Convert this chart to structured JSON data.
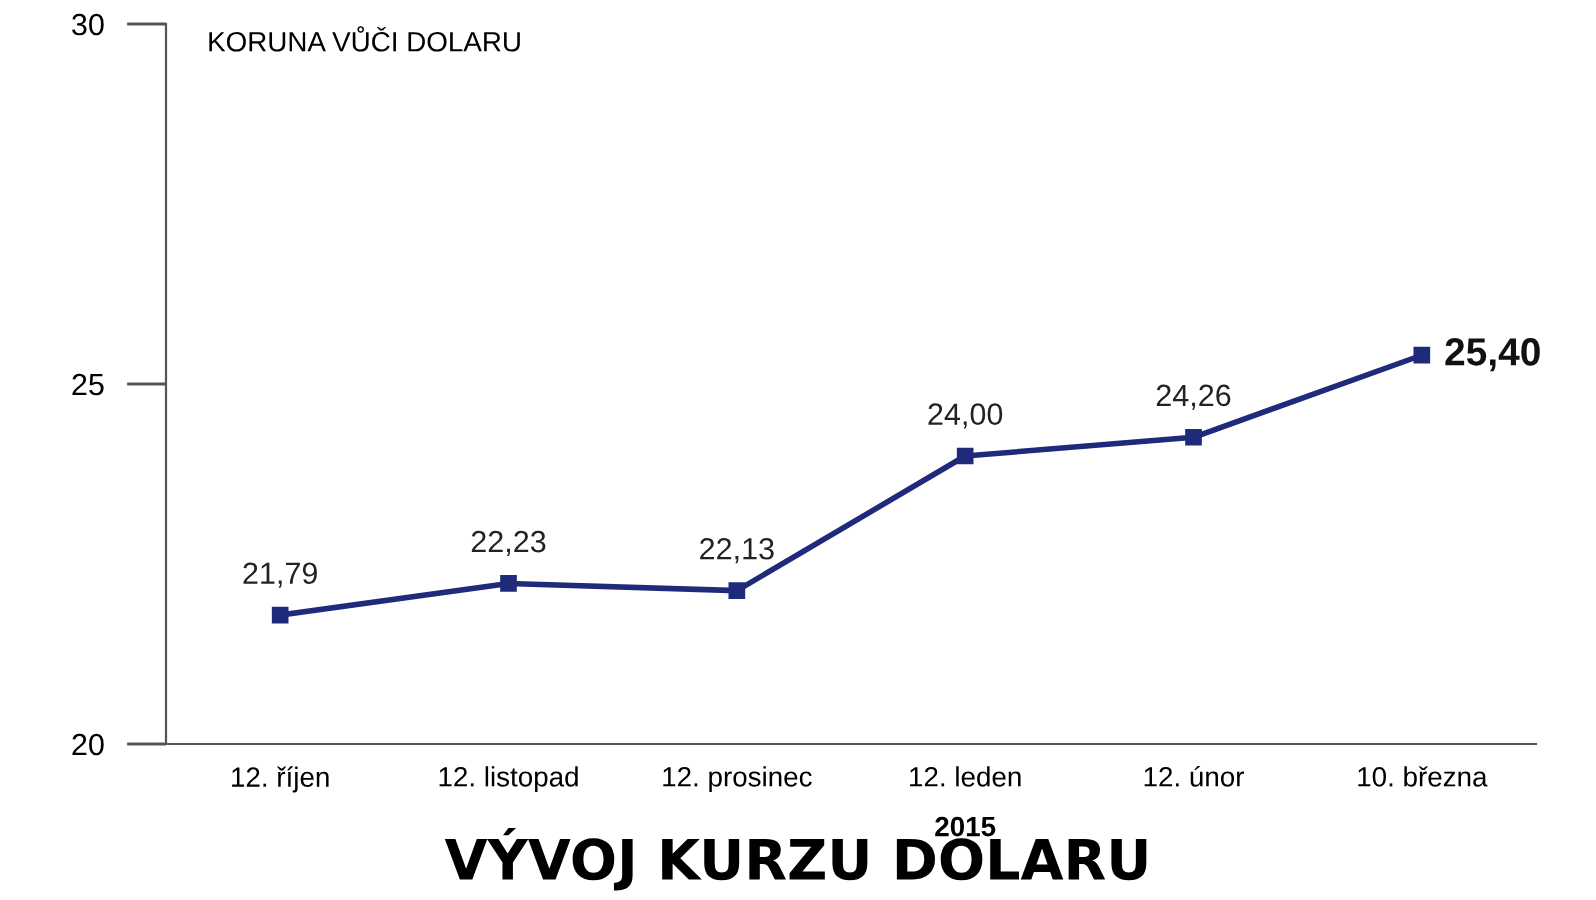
{
  "chart_data": {
    "type": "line",
    "title": "VÝVOJ KURZU DOLARU",
    "ylabel": "KORUNA VŮČI DOLARU",
    "categories": [
      "12. říjen",
      "12. listopad",
      "12. prosinec",
      "12. leden",
      "12. únor",
      "10. března"
    ],
    "series": [
      {
        "color": "#1f2a7a",
        "values": [
          21.79,
          22.23,
          22.13,
          24.0,
          24.26,
          25.4
        ],
        "value_labels": [
          "21,79",
          "22,23",
          "22,13",
          "24,00",
          "24,26",
          "25,40"
        ]
      }
    ],
    "annotations": [
      "2015"
    ],
    "ylim": [
      20,
      30
    ],
    "yticks": [
      20,
      25,
      30
    ],
    "grid": false,
    "legend": false,
    "marker": "square",
    "line_style": "solid"
  }
}
